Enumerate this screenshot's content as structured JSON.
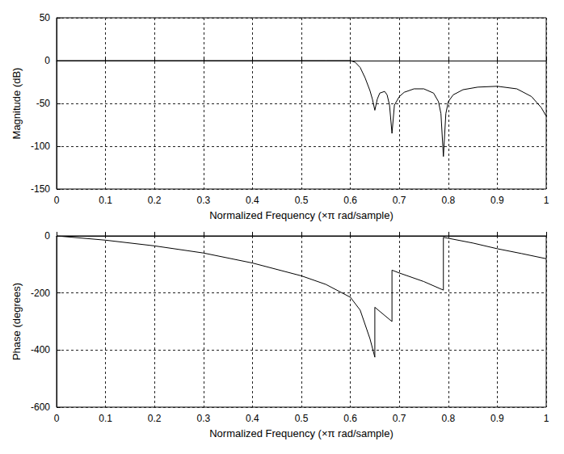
{
  "chart_data": [
    {
      "type": "line",
      "x_label": "Normalized Frequency (×π rad/sample)",
      "y_label": "Magnitude (dB)",
      "x": [
        0,
        0.1,
        0.2,
        0.3,
        0.4,
        0.5,
        0.55,
        0.6,
        0.61,
        0.62,
        0.63,
        0.64,
        0.645,
        0.65,
        0.655,
        0.66,
        0.67,
        0.675,
        0.68,
        0.685,
        0.69,
        0.7,
        0.71,
        0.73,
        0.75,
        0.77,
        0.78,
        0.785,
        0.79,
        0.795,
        0.8,
        0.81,
        0.83,
        0.86,
        0.9,
        0.94,
        0.97,
        0.99,
        1.0
      ],
      "values": [
        0,
        0,
        0,
        0,
        0,
        0,
        0,
        0,
        -2,
        -8,
        -20,
        -35,
        -45,
        -58,
        -45,
        -38,
        -36,
        -40,
        -52,
        -85,
        -52,
        -42,
        -37,
        -33,
        -33,
        -38,
        -48,
        -62,
        -112,
        -62,
        -48,
        -40,
        -34,
        -31,
        -30,
        -33,
        -42,
        -55,
        -65
      ],
      "color": "#000000",
      "xlim": [
        0,
        1
      ],
      "xticks": [
        0,
        0.1,
        0.2,
        0.3,
        0.4,
        0.5,
        0.6,
        0.7,
        0.8,
        0.9,
        1
      ],
      "ylim": [
        -150,
        50
      ],
      "yticks": [
        -150,
        -100,
        -50,
        0,
        50
      ],
      "grid": true
    },
    {
      "type": "line",
      "x_label": "Normalized Frequency (×π rad/sample)",
      "y_label": "Phase (degrees)",
      "x": [
        0,
        0.1,
        0.2,
        0.3,
        0.4,
        0.5,
        0.55,
        0.6,
        0.62,
        0.64,
        0.65,
        0.65,
        0.685,
        0.685,
        0.7,
        0.75,
        0.79,
        0.79,
        0.85,
        0.9,
        0.95,
        1.0
      ],
      "values": [
        0,
        -15,
        -35,
        -60,
        -95,
        -140,
        -170,
        -215,
        -260,
        -360,
        -425,
        -250,
        -300,
        -120,
        -130,
        -160,
        -190,
        -5,
        -25,
        -45,
        -62,
        -80
      ],
      "color": "#000000",
      "xlim": [
        0,
        1
      ],
      "xticks": [
        0,
        0.1,
        0.2,
        0.3,
        0.4,
        0.5,
        0.6,
        0.7,
        0.8,
        0.9,
        1
      ],
      "ylim": [
        -600,
        0
      ],
      "yticks": [
        -600,
        -400,
        -200,
        0
      ],
      "grid": true
    }
  ]
}
